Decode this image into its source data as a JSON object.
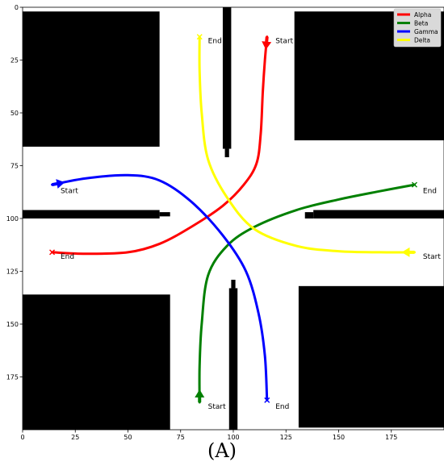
{
  "caption": "(A)",
  "chart_data": {
    "type": "line",
    "title": "",
    "xlabel": "",
    "ylabel": "",
    "xlim": [
      0,
      200
    ],
    "ylim": [
      0,
      200
    ],
    "y_inverted": true,
    "grid": false,
    "legend_placement": "top-right",
    "xticks": [
      0,
      25,
      50,
      75,
      100,
      125,
      150,
      175
    ],
    "yticks": [
      0,
      25,
      50,
      75,
      100,
      125,
      150,
      175
    ],
    "obstacles": [
      {
        "name": "top-left-block",
        "x": [
          0,
          65
        ],
        "y": [
          2,
          66
        ]
      },
      {
        "name": "top-right-block",
        "x": [
          129,
          200
        ],
        "y": [
          2,
          63
        ]
      },
      {
        "name": "bottom-left-block",
        "x": [
          0,
          70
        ],
        "y": [
          136,
          200
        ]
      },
      {
        "name": "bottom-right-block",
        "x": [
          131,
          200
        ],
        "y": [
          132,
          199
        ]
      },
      {
        "name": "top-wall",
        "x": [
          95,
          99
        ],
        "y": [
          0,
          67
        ]
      },
      {
        "name": "top-wall-stub",
        "x": [
          96,
          98
        ],
        "y": [
          67,
          71
        ]
      },
      {
        "name": "left-wall",
        "x": [
          0,
          65
        ],
        "y": [
          96,
          100
        ]
      },
      {
        "name": "left-wall-stub",
        "x": [
          65,
          70
        ],
        "y": [
          97,
          99
        ]
      },
      {
        "name": "right-wall",
        "x": [
          138,
          200
        ],
        "y": [
          96,
          100
        ]
      },
      {
        "name": "right-wall-stub",
        "x": [
          134,
          138
        ],
        "y": [
          97,
          100
        ]
      },
      {
        "name": "bottom-wall",
        "x": [
          98,
          102
        ],
        "y": [
          133,
          200
        ]
      },
      {
        "name": "bottom-wall-stub",
        "x": [
          99,
          101
        ],
        "y": [
          129,
          133
        ]
      }
    ],
    "series": [
      {
        "name": "Alpha",
        "color": "#ff0000",
        "x": [
          14,
          30,
          50,
          65,
          80,
          95,
          105,
          111,
          113,
          114,
          115,
          116
        ],
        "y": [
          116,
          116.7,
          116,
          112,
          104,
          94,
          84,
          74,
          60,
          40,
          25,
          14
        ],
        "start": [
          116,
          14
        ],
        "end": [
          14,
          116
        ]
      },
      {
        "name": "Beta",
        "color": "#008000",
        "x": [
          84,
          84,
          85,
          88,
          97,
          110,
          130,
          150,
          170,
          186
        ],
        "y": [
          187,
          170,
          150,
          127,
          113,
          104,
          96,
          91,
          87,
          84
        ],
        "start": [
          84,
          187
        ],
        "end": [
          186,
          84
        ]
      },
      {
        "name": "Gamma",
        "color": "#0000ff",
        "x": [
          14,
          30,
          50,
          65,
          80,
          95,
          106,
          112,
          115,
          116
        ],
        "y": [
          84,
          81,
          79.5,
          82,
          92,
          108,
          125,
          145,
          165,
          186
        ],
        "start": [
          14,
          84
        ],
        "end": [
          116,
          186
        ]
      },
      {
        "name": "Delta",
        "color": "#ffff00",
        "x": [
          84,
          84,
          85,
          88,
          97,
          110,
          130,
          150,
          170,
          186
        ],
        "y": [
          14,
          30,
          50,
          72,
          90,
          105,
          113,
          115.5,
          116,
          116
        ],
        "start": [
          186,
          116
        ],
        "end": [
          84,
          14
        ]
      }
    ],
    "annotations": [
      {
        "text": "Start",
        "x": 120,
        "y": 17
      },
      {
        "text": "End",
        "x": 88,
        "y": 17
      },
      {
        "text": "Start",
        "x": 18,
        "y": 88
      },
      {
        "text": "End",
        "x": 190,
        "y": 88
      },
      {
        "text": "End",
        "x": 18,
        "y": 119
      },
      {
        "text": "Start",
        "x": 190,
        "y": 119
      },
      {
        "text": "Start",
        "x": 88,
        "y": 190
      },
      {
        "text": "End",
        "x": 120,
        "y": 190
      }
    ]
  }
}
